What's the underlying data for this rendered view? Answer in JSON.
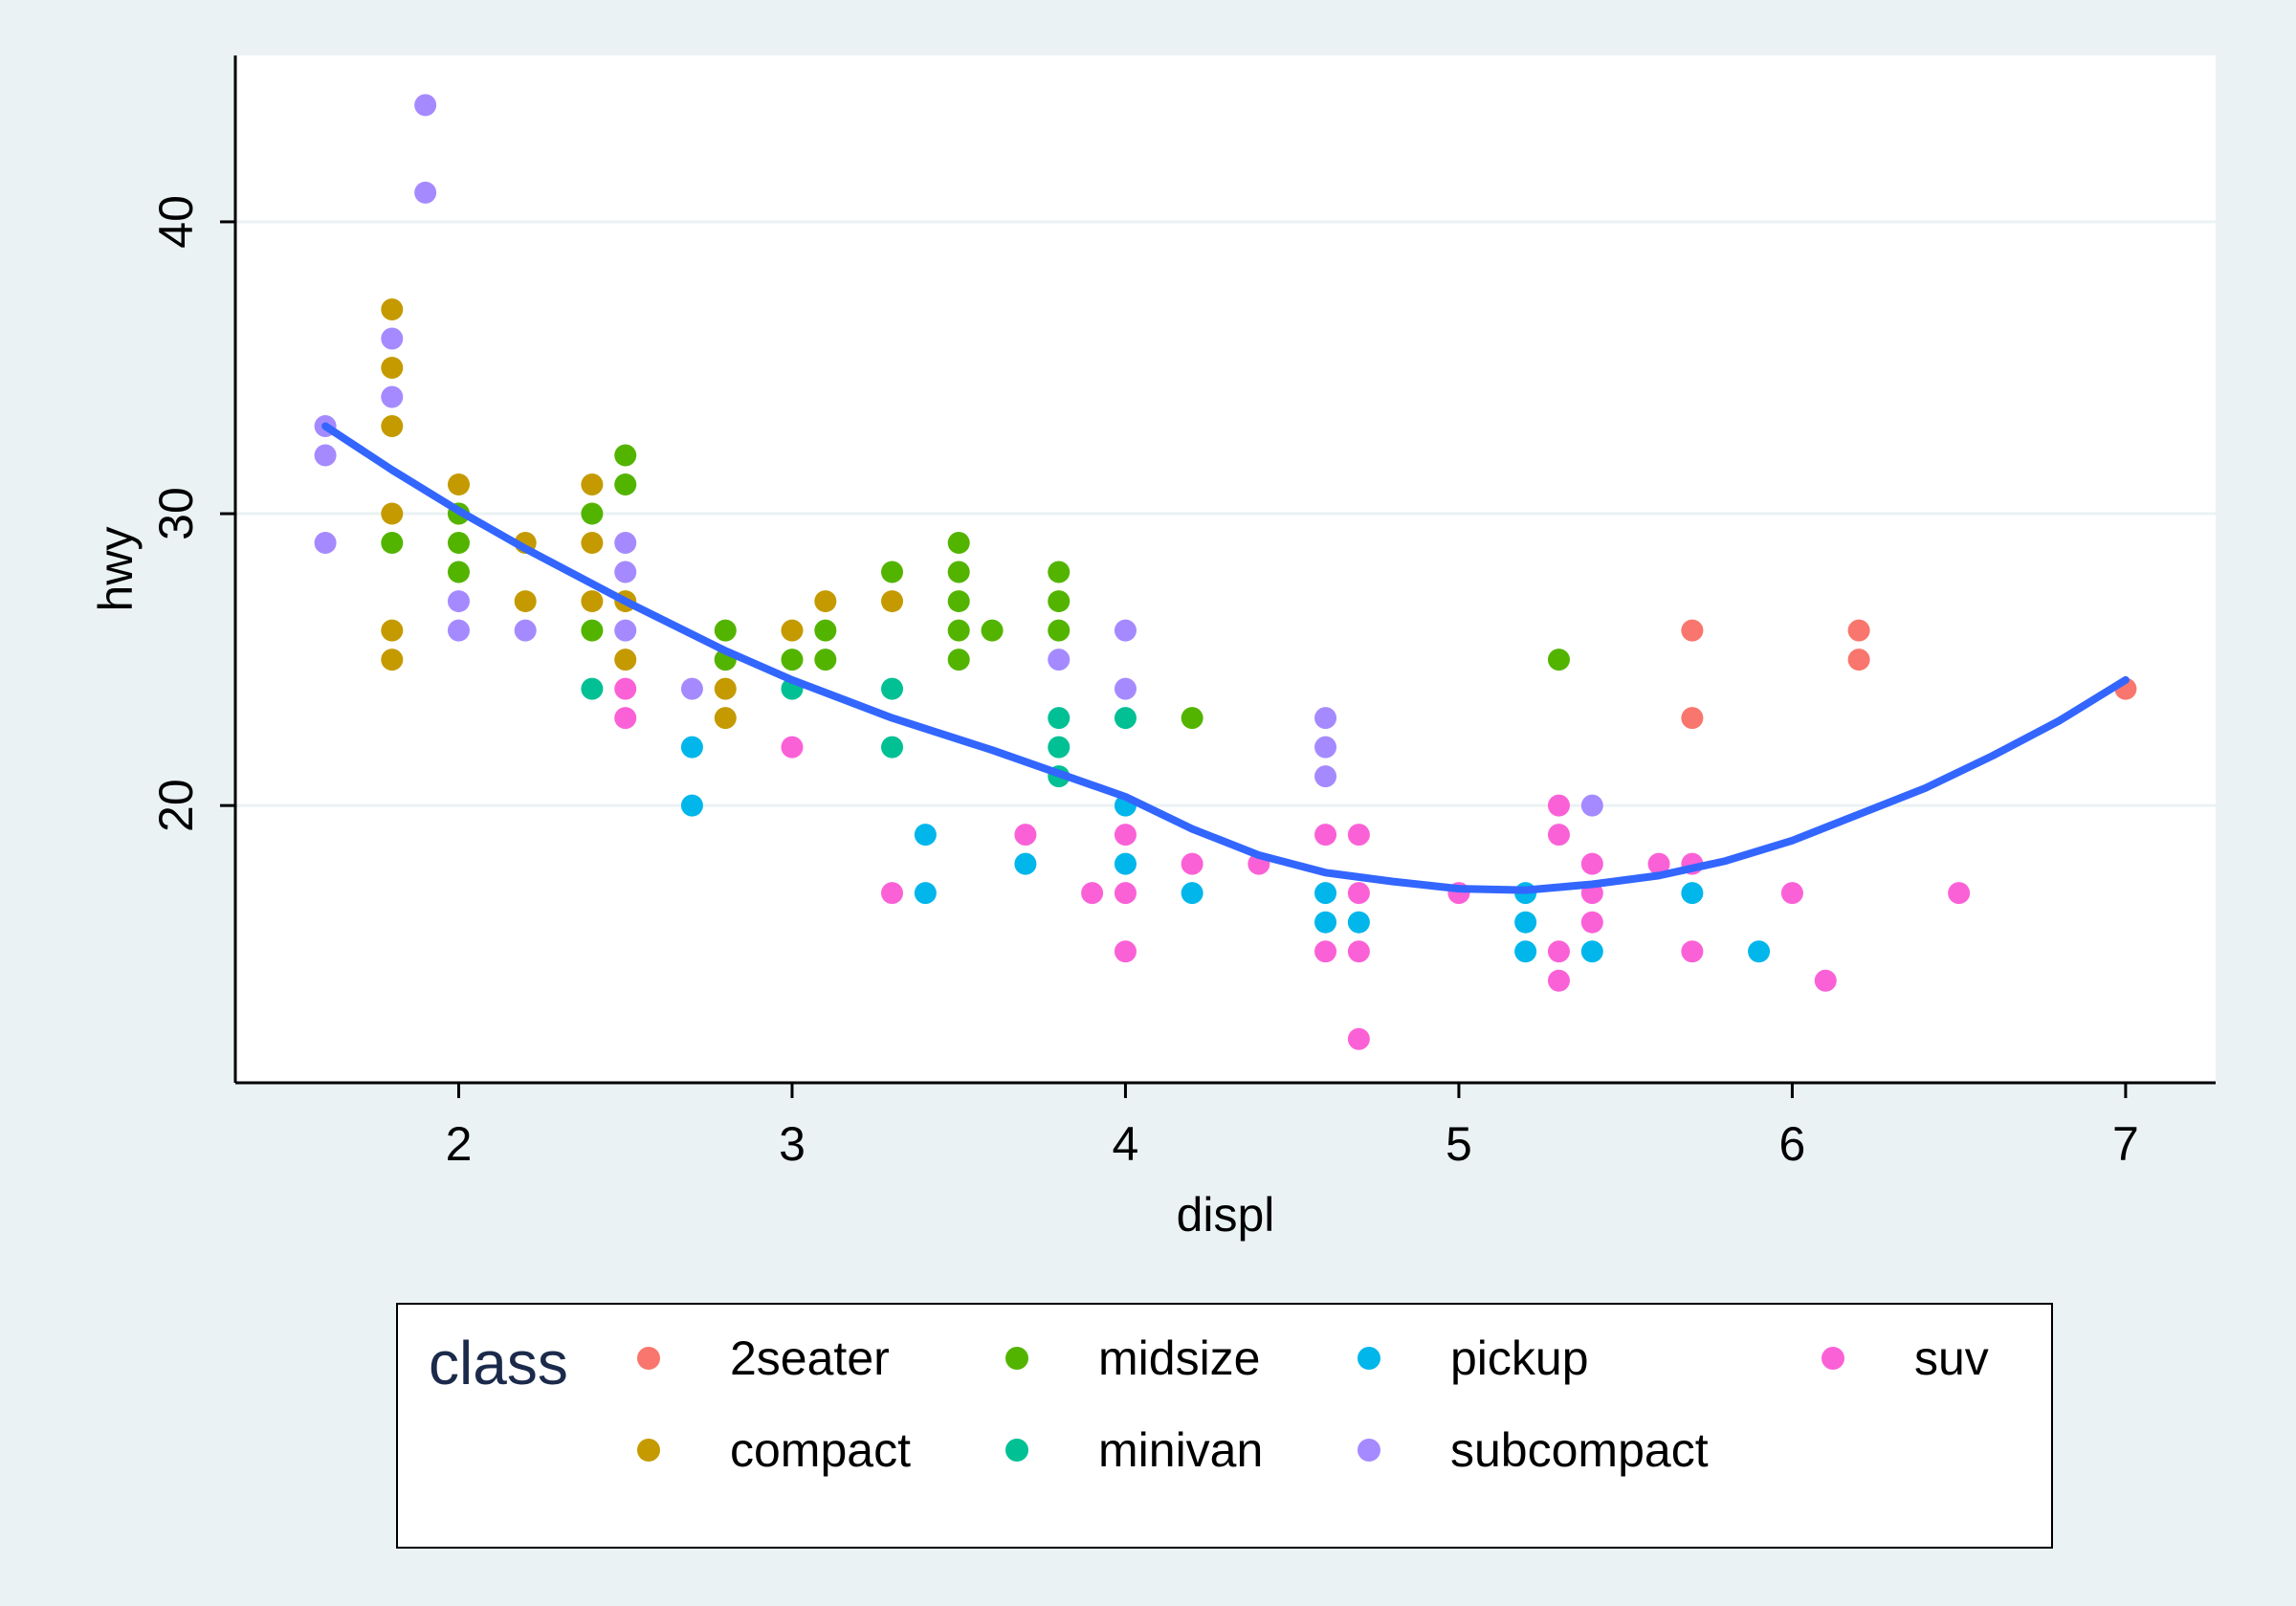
{
  "chart_data": {
    "type": "scatter",
    "xlabel": "displ",
    "ylabel": "hwy",
    "xlim": [
      1.33,
      7.27
    ],
    "ylim": [
      10.5,
      45.7
    ],
    "xticks": [
      2,
      3,
      4,
      5,
      6,
      7
    ],
    "yticks": [
      20,
      30,
      40
    ],
    "grid": "horizontal",
    "legend_position": "bottom",
    "legend_title": "class",
    "colors": {
      "2seater": "#f8766d",
      "compact": "#c49a00",
      "midsize": "#53b400",
      "minivan": "#00c094",
      "pickup": "#00b6eb",
      "subcompact": "#a58aff",
      "suv": "#fb61d7",
      "fit": "#3366ff"
    },
    "legend_items": [
      {
        "key": "2seater",
        "label": "2seater"
      },
      {
        "key": "compact",
        "label": "compact"
      },
      {
        "key": "midsize",
        "label": "midsize"
      },
      {
        "key": "minivan",
        "label": "minivan"
      },
      {
        "key": "pickup",
        "label": "pickup"
      },
      {
        "key": "subcompact",
        "label": "subcompact"
      },
      {
        "key": "suv",
        "label": "suv"
      }
    ],
    "series": [
      {
        "key": "2seater",
        "x": [
          5.7,
          5.7,
          6.2,
          6.2,
          7.0
        ],
        "y": [
          26,
          23,
          26,
          25,
          24
        ]
      },
      {
        "key": "compact",
        "x": [
          1.8,
          1.8,
          1.8,
          1.8,
          1.8,
          1.8,
          2.0,
          2.0,
          2.2,
          2.2,
          2.4,
          2.4,
          2.4,
          2.5,
          2.5,
          2.8,
          2.8,
          2.8,
          3.0,
          3.1,
          3.3
        ],
        "y": [
          37,
          35,
          33,
          30,
          26,
          25,
          31,
          30,
          29,
          27,
          31,
          29,
          27,
          27,
          25,
          25,
          24,
          23,
          26,
          27,
          27
        ]
      },
      {
        "key": "midsize",
        "x": [
          1.8,
          2.0,
          2.0,
          2.0,
          2.4,
          2.4,
          2.5,
          2.5,
          2.8,
          2.8,
          3.0,
          3.1,
          3.1,
          3.3,
          3.5,
          3.5,
          3.5,
          3.5,
          3.5,
          3.6,
          3.8,
          3.8,
          3.8,
          4.2,
          5.3
        ],
        "y": [
          29,
          30,
          29,
          28,
          30,
          26,
          32,
          31,
          26,
          25,
          25,
          26,
          25,
          28,
          29,
          28,
          27,
          26,
          25,
          26,
          28,
          27,
          26,
          23,
          25
        ]
      },
      {
        "key": "minivan",
        "x": [
          2.4,
          3.0,
          3.3,
          3.3,
          3.8,
          3.8,
          3.8,
          4.0
        ],
        "y": [
          24,
          24,
          24,
          22,
          23,
          22,
          21,
          23
        ]
      },
      {
        "key": "pickup",
        "x": [
          2.7,
          2.7,
          3.4,
          3.4,
          3.7,
          4.0,
          4.0,
          4.2,
          4.6,
          4.6,
          4.7,
          5.2,
          5.2,
          5.2,
          5.4,
          5.7,
          5.9
        ],
        "y": [
          22,
          20,
          19,
          17,
          18,
          20,
          18,
          17,
          17,
          16,
          16,
          17,
          16,
          15,
          15,
          17,
          15
        ]
      },
      {
        "key": "subcompact",
        "x": [
          1.6,
          1.6,
          1.6,
          1.8,
          1.8,
          1.9,
          1.9,
          2.0,
          2.0,
          2.2,
          2.5,
          2.5,
          2.5,
          2.7,
          3.8,
          4.0,
          4.0,
          4.6,
          4.6,
          4.6,
          5.4
        ],
        "y": [
          33,
          32,
          29,
          36,
          34,
          44,
          41,
          27,
          26,
          26,
          29,
          28,
          26,
          24,
          25,
          26,
          24,
          23,
          22,
          21,
          20
        ]
      },
      {
        "key": "suv",
        "x": [
          2.5,
          2.5,
          3.0,
          3.3,
          3.7,
          3.9,
          4.0,
          4.0,
          4.0,
          4.2,
          4.4,
          4.6,
          4.6,
          4.7,
          4.7,
          4.7,
          4.7,
          5.0,
          5.3,
          5.3,
          5.3,
          5.3,
          5.4,
          5.4,
          5.4,
          5.6,
          5.7,
          5.7,
          6.0,
          6.1,
          6.5
        ],
        "y": [
          24,
          23,
          22,
          17,
          19,
          17,
          19,
          17,
          15,
          18,
          18,
          19,
          15,
          19,
          17,
          15,
          12,
          17,
          20,
          19,
          15,
          14,
          18,
          17,
          16,
          18,
          18,
          15,
          17,
          14,
          17
        ]
      }
    ],
    "smooth": {
      "x": [
        1.6,
        1.8,
        2.0,
        2.2,
        2.5,
        2.8,
        3.0,
        3.3,
        3.6,
        3.9,
        4.0,
        4.2,
        4.4,
        4.6,
        4.8,
        5.0,
        5.2,
        5.4,
        5.6,
        5.8,
        6.0,
        6.2,
        6.4,
        6.6,
        6.8,
        7.0
      ],
      "y": [
        33.0,
        31.5,
        30.1,
        28.8,
        27.0,
        25.3,
        24.3,
        23.0,
        21.9,
        20.7,
        20.3,
        19.2,
        18.3,
        17.7,
        17.4,
        17.15,
        17.1,
        17.3,
        17.6,
        18.1,
        18.8,
        19.7,
        20.6,
        21.7,
        22.9,
        24.3
      ]
    }
  }
}
